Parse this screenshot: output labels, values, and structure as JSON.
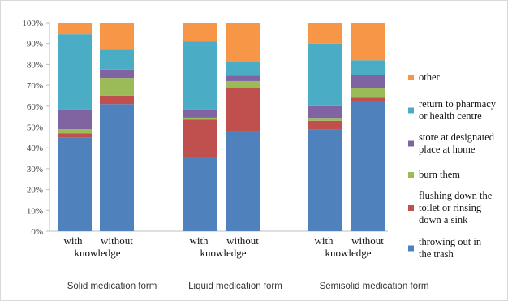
{
  "chart_data": {
    "type": "bar",
    "stacked": true,
    "normalized_percent": true,
    "ylim": [
      0,
      100
    ],
    "yticks": [
      "0%",
      "10%",
      "20%",
      "30%",
      "40%",
      "50%",
      "60%",
      "70%",
      "80%",
      "90%",
      "100%"
    ],
    "grid": false,
    "legend_position": "right",
    "groups": [
      {
        "label": "Solid medication form",
        "bars": [
          "with",
          "without"
        ],
        "shared_label": "knowledge"
      },
      {
        "label": "Liquid medication form",
        "bars": [
          "with",
          "without"
        ],
        "shared_label": "knowledge"
      },
      {
        "label": "Semisolid medication form",
        "bars": [
          "with",
          "without"
        ],
        "shared_label": "knowledge"
      }
    ],
    "series": [
      {
        "name": "throwing out in the trash",
        "legend_lines": [
          "throwing out in",
          "the trash"
        ],
        "color": "#4f81bd",
        "values": [
          45,
          61,
          35.5,
          47.5,
          49,
          62.5
        ]
      },
      {
        "name": "flushing down the toilet or rinsing down a sink",
        "legend_lines": [
          "flushing down the",
          "toilet or rinsing",
          "down a sink"
        ],
        "color": "#c0504d",
        "values": [
          2,
          4,
          18,
          21.5,
          4,
          1.5
        ]
      },
      {
        "name": "burn them",
        "legend_lines": [
          "burn them"
        ],
        "color": "#9bbb59",
        "values": [
          2,
          8.5,
          1,
          3,
          1,
          4.5
        ]
      },
      {
        "name": "store at designated place at home",
        "legend_lines": [
          "store at designated",
          "place at home"
        ],
        "color": "#8064a2",
        "values": [
          9.5,
          4,
          4,
          2.5,
          6,
          6.5
        ]
      },
      {
        "name": "return to pharmacy or health centre",
        "legend_lines": [
          "return to pharmacy",
          "or health centre"
        ],
        "color": "#4bacc6",
        "values": [
          36,
          9.5,
          32.5,
          6.5,
          30,
          7
        ]
      },
      {
        "name": "other",
        "legend_lines": [
          "other"
        ],
        "color": "#f79646",
        "values": [
          5.5,
          13,
          9,
          19,
          10,
          18
        ]
      }
    ]
  }
}
